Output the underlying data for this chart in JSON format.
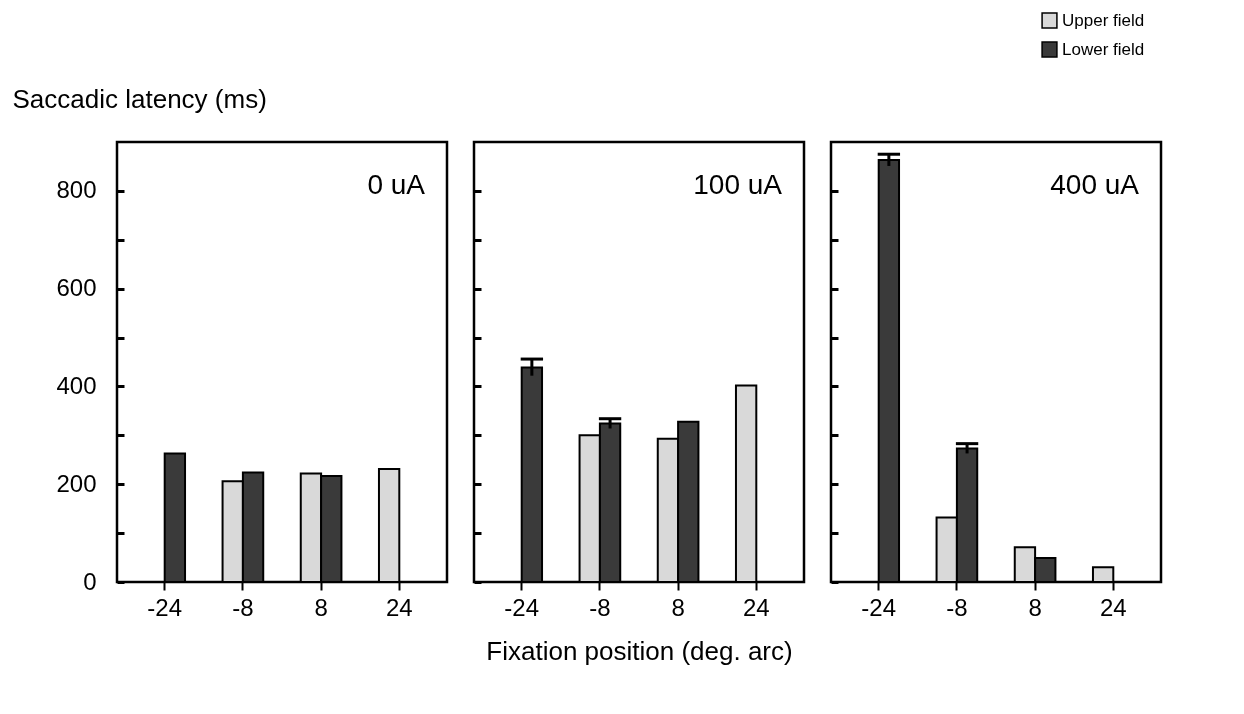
{
  "chart_data": [
    {
      "type": "bar",
      "ylabel": "Saccadic latency (ms)",
      "annotations": [
        "0 uA"
      ],
      "categories": [
        "-24",
        "-8",
        "8",
        "24"
      ],
      "ylim": [
        0,
        900
      ],
      "yticks": [
        0,
        {
          "value": 100,
          "label": null
        },
        200,
        {
          "value": 300,
          "label": null
        },
        400,
        {
          "value": 500,
          "label": null
        },
        600,
        {
          "value": 700,
          "label": null
        },
        800
      ],
      "grid": false,
      "legend": false,
      "series": [
        {
          "color": "#d9d9d9",
          "values": [
            null,
            206,
            222,
            231
          ]
        },
        {
          "color": "#3a3a3a",
          "values": [
            263,
            224,
            217,
            null
          ]
        }
      ]
    },
    {
      "type": "bar",
      "xlabel": "Fixation position (deg. arc)",
      "annotations": [
        "100 uA"
      ],
      "categories": [
        "-24",
        "-8",
        "8",
        "24"
      ],
      "ylim": [
        0,
        900
      ],
      "yticks": [
        0,
        {
          "value": 100,
          "label": null
        },
        200,
        {
          "value": 300,
          "label": null
        },
        400,
        {
          "value": 500,
          "label": null
        },
        600,
        {
          "value": 700,
          "label": null
        },
        800
      ],
      "grid": false,
      "legend": false,
      "tick_labels": "x",
      "series": [
        {
          "color": "#d9d9d9",
          "values": [
            null,
            300,
            293,
            402
          ]
        },
        {
          "color": "#3a3a3a",
          "values": [
            439,
            324,
            328,
            null
          ],
          "errors": [
            17,
            10,
            null,
            null
          ]
        }
      ]
    },
    {
      "type": "bar",
      "annotations": [
        "400 uA"
      ],
      "categories": [
        "-24",
        "-8",
        "8",
        "24"
      ],
      "ylim": [
        0,
        900
      ],
      "yticks": [
        0,
        {
          "value": 100,
          "label": null
        },
        200,
        {
          "value": 300,
          "label": null
        },
        400,
        {
          "value": 500,
          "label": null
        },
        600,
        {
          "value": 700,
          "label": null
        },
        800
      ],
      "grid": false,
      "legend": "top right",
      "tick_labels": "x",
      "series": [
        {
          "name": "Upper field",
          "color": "#d9d9d9",
          "values": [
            null,
            132,
            71,
            30
          ]
        },
        {
          "name": "Lower field",
          "color": "#3a3a3a",
          "values": [
            863,
            273,
            49,
            null
          ],
          "errors": [
            12,
            10,
            null,
            null
          ]
        }
      ]
    }
  ]
}
